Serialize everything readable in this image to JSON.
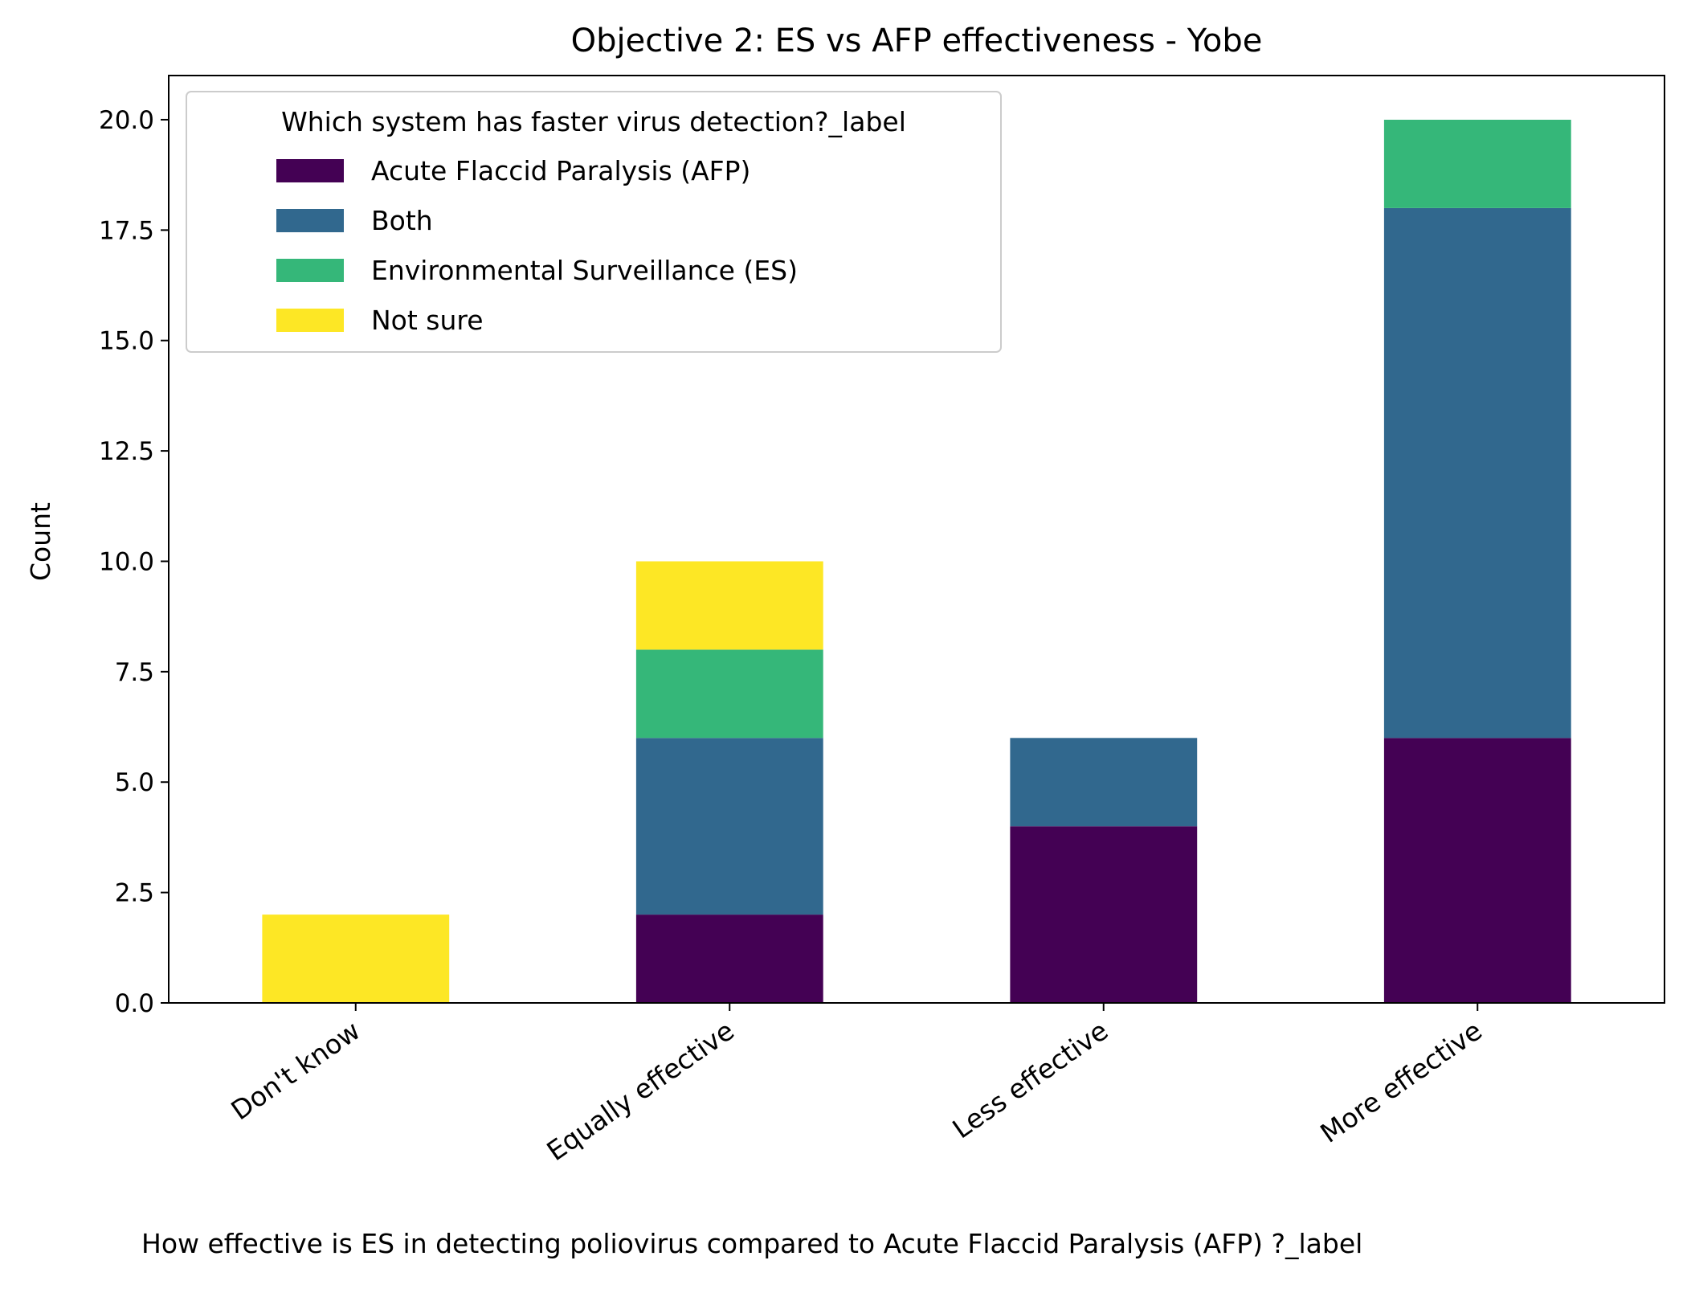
{
  "chart_data": {
    "type": "bar",
    "stacked": true,
    "title": "Objective 2: ES vs AFP effectiveness - Yobe",
    "xlabel": "How effective is ES in detecting poliovirus compared to  Acute Flaccid Paralysis (AFP) ?_label",
    "ylabel": "Count",
    "ylim": [
      0,
      21
    ],
    "yticks": [
      "0.0",
      "2.5",
      "5.0",
      "7.5",
      "10.0",
      "12.5",
      "15.0",
      "17.5",
      "20.0"
    ],
    "categories": [
      "Don't know",
      "Equally effective",
      "Less effective",
      "More effective"
    ],
    "legend": {
      "title": "Which system has faster virus detection?_label",
      "placement": "top-left"
    },
    "series": [
      {
        "name": "Acute Flaccid Paralysis (AFP)",
        "color": "#440154",
        "values": [
          0,
          2,
          4,
          6
        ]
      },
      {
        "name": "Both",
        "color": "#31688e",
        "values": [
          0,
          4,
          2,
          12
        ]
      },
      {
        "name": "Environmental Surveillance (ES)",
        "color": "#35b779",
        "values": [
          0,
          2,
          0,
          2
        ]
      },
      {
        "name": "Not sure",
        "color": "#fde725",
        "values": [
          2,
          2,
          0,
          0
        ]
      }
    ],
    "grid": false
  }
}
